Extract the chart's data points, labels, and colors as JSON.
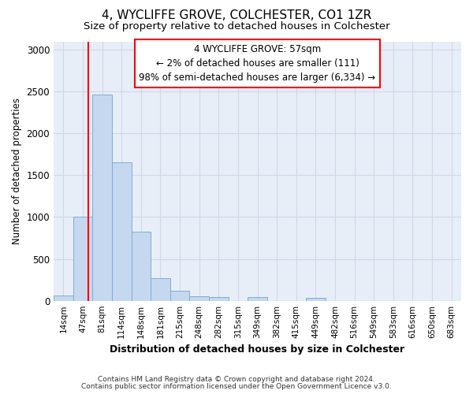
{
  "title_line1": "4, WYCLIFFE GROVE, COLCHESTER, CO1 1ZR",
  "title_line2": "Size of property relative to detached houses in Colchester",
  "xlabel": "Distribution of detached houses by size in Colchester",
  "ylabel": "Number of detached properties",
  "bar_labels": [
    "14sqm",
    "47sqm",
    "81sqm",
    "114sqm",
    "148sqm",
    "181sqm",
    "215sqm",
    "248sqm",
    "282sqm",
    "315sqm",
    "349sqm",
    "382sqm",
    "415sqm",
    "449sqm",
    "482sqm",
    "516sqm",
    "549sqm",
    "583sqm",
    "616sqm",
    "650sqm",
    "683sqm"
  ],
  "bar_values": [
    60,
    1000,
    2460,
    1650,
    830,
    270,
    120,
    55,
    45,
    0,
    45,
    0,
    0,
    30,
    0,
    0,
    0,
    0,
    0,
    0,
    0
  ],
  "bar_color": "#c5d8f0",
  "bar_edgecolor": "#7aaed6",
  "grid_color": "#d0d8e8",
  "annotation_text": "4 WYCLIFFE GROVE: 57sqm\n← 2% of detached houses are smaller (111)\n98% of semi-detached houses are larger (6,334) →",
  "annotation_box_facecolor": "white",
  "annotation_box_edgecolor": "red",
  "vline_color": "red",
  "ylim": [
    0,
    3100
  ],
  "yticks": [
    0,
    500,
    1000,
    1500,
    2000,
    2500,
    3000
  ],
  "footer_line1": "Contains HM Land Registry data © Crown copyright and database right 2024.",
  "footer_line2": "Contains public sector information licensed under the Open Government Licence v3.0.",
  "fig_facecolor": "#ffffff",
  "plot_facecolor": "#e8eef8",
  "title1_fontsize": 11,
  "title2_fontsize": 9.5
}
